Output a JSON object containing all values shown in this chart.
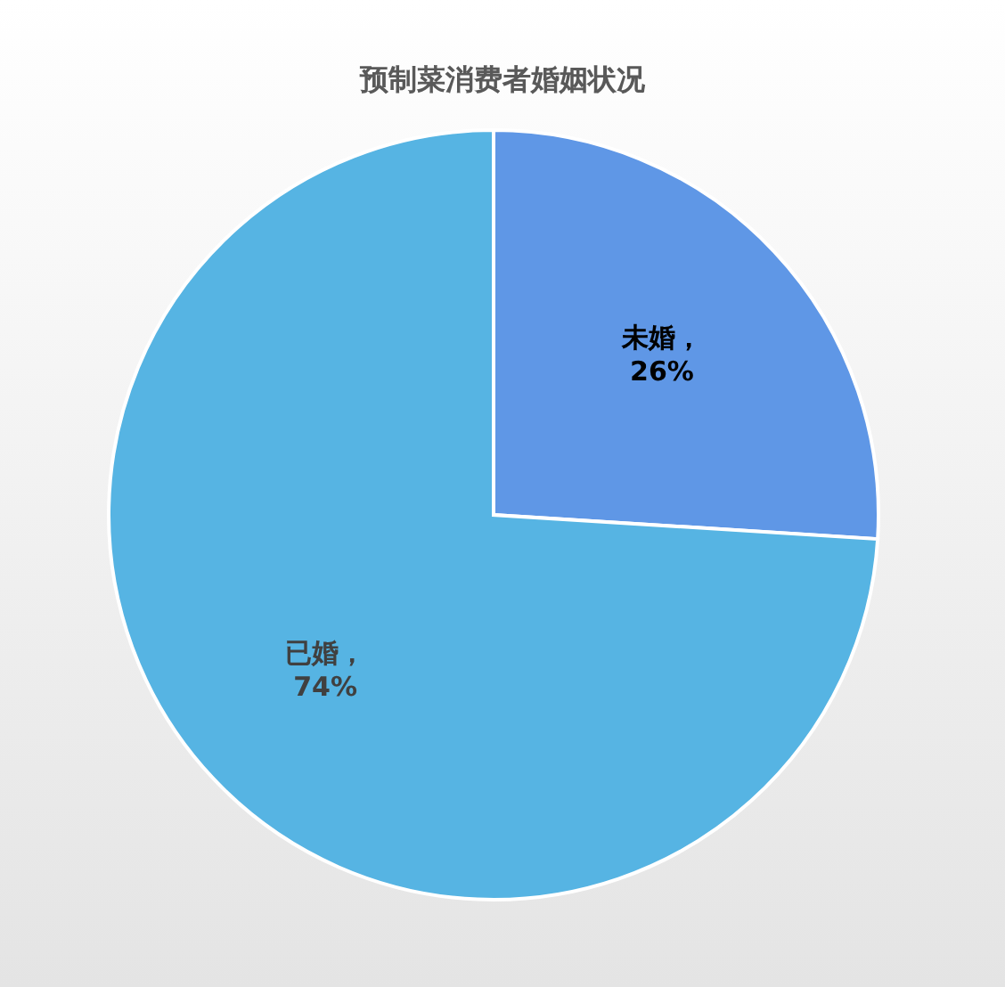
{
  "chart_data": {
    "type": "pie",
    "title": "预制菜消费者婚姻状况",
    "categories": [
      "未婚",
      "已婚"
    ],
    "values": [
      26,
      74
    ],
    "colors": [
      "#5f97e6",
      "#56b4e3"
    ],
    "value_labels": [
      "，26%",
      "，74%"
    ]
  }
}
